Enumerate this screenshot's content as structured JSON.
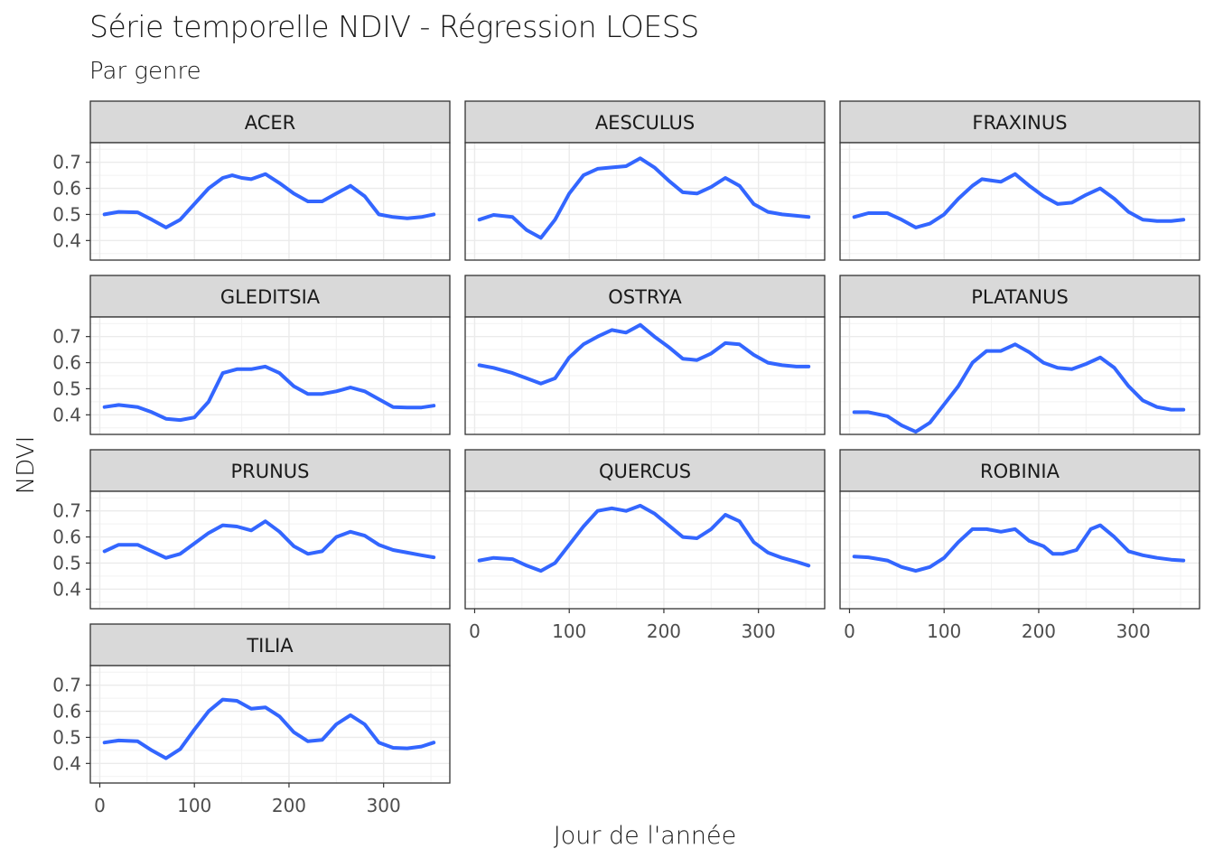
{
  "chart_data": {
    "type": "line",
    "title": "Série temporelle NDIV - Régression LOESS",
    "subtitle": "Par genre",
    "xlabel": "Jour de l'année",
    "ylabel": "NDVI",
    "xlim": [
      -10,
      370
    ],
    "ylim": [
      0.325,
      0.775
    ],
    "x_ticks": [
      0,
      100,
      200,
      300
    ],
    "y_ticks": [
      0.4,
      0.5,
      0.6,
      0.7
    ],
    "grid": true,
    "line_color": "#3366ff",
    "panels": [
      {
        "name": "ACER",
        "x": [
          5,
          20,
          40,
          55,
          70,
          85,
          100,
          115,
          130,
          140,
          150,
          160,
          175,
          190,
          205,
          220,
          235,
          250,
          265,
          280,
          295,
          310,
          325,
          340,
          353
        ],
        "values": [
          0.5,
          0.51,
          0.508,
          0.48,
          0.45,
          0.48,
          0.54,
          0.6,
          0.64,
          0.65,
          0.64,
          0.635,
          0.655,
          0.62,
          0.58,
          0.55,
          0.55,
          0.58,
          0.61,
          0.57,
          0.5,
          0.49,
          0.485,
          0.49,
          0.5
        ]
      },
      {
        "name": "AESCULUS",
        "x": [
          5,
          20,
          40,
          55,
          70,
          85,
          100,
          115,
          130,
          145,
          160,
          175,
          190,
          205,
          220,
          235,
          250,
          265,
          280,
          295,
          310,
          325,
          340,
          353
        ],
        "values": [
          0.48,
          0.498,
          0.49,
          0.44,
          0.41,
          0.48,
          0.58,
          0.65,
          0.675,
          0.68,
          0.685,
          0.715,
          0.68,
          0.63,
          0.585,
          0.58,
          0.605,
          0.64,
          0.61,
          0.54,
          0.51,
          0.5,
          0.495,
          0.49
        ]
      },
      {
        "name": "FRAXINUS",
        "x": [
          5,
          20,
          40,
          55,
          70,
          85,
          100,
          115,
          130,
          140,
          150,
          160,
          175,
          190,
          205,
          220,
          235,
          250,
          265,
          280,
          295,
          310,
          325,
          340,
          353
        ],
        "values": [
          0.49,
          0.505,
          0.505,
          0.48,
          0.45,
          0.465,
          0.5,
          0.56,
          0.61,
          0.635,
          0.63,
          0.625,
          0.655,
          0.61,
          0.57,
          0.54,
          0.545,
          0.575,
          0.6,
          0.56,
          0.51,
          0.48,
          0.475,
          0.475,
          0.48
        ]
      },
      {
        "name": "GLEDITSIA",
        "x": [
          5,
          20,
          40,
          55,
          70,
          85,
          100,
          115,
          130,
          145,
          160,
          175,
          190,
          205,
          220,
          235,
          250,
          265,
          280,
          295,
          310,
          325,
          340,
          353
        ],
        "values": [
          0.43,
          0.438,
          0.43,
          0.41,
          0.385,
          0.38,
          0.39,
          0.45,
          0.56,
          0.575,
          0.575,
          0.585,
          0.56,
          0.51,
          0.48,
          0.48,
          0.49,
          0.505,
          0.49,
          0.46,
          0.43,
          0.428,
          0.428,
          0.435
        ]
      },
      {
        "name": "OSTRYA",
        "x": [
          5,
          20,
          40,
          55,
          70,
          85,
          100,
          115,
          130,
          145,
          160,
          175,
          190,
          205,
          220,
          235,
          250,
          265,
          280,
          295,
          310,
          325,
          340,
          353
        ],
        "values": [
          0.59,
          0.58,
          0.56,
          0.54,
          0.52,
          0.54,
          0.62,
          0.67,
          0.7,
          0.725,
          0.715,
          0.745,
          0.7,
          0.66,
          0.615,
          0.61,
          0.635,
          0.675,
          0.67,
          0.63,
          0.6,
          0.59,
          0.585,
          0.585
        ]
      },
      {
        "name": "PLATANUS",
        "x": [
          5,
          20,
          40,
          55,
          70,
          85,
          100,
          115,
          130,
          145,
          160,
          175,
          190,
          205,
          220,
          235,
          250,
          265,
          280,
          295,
          310,
          325,
          340,
          353
        ],
        "values": [
          0.41,
          0.41,
          0.395,
          0.36,
          0.335,
          0.37,
          0.44,
          0.51,
          0.6,
          0.645,
          0.645,
          0.67,
          0.64,
          0.6,
          0.58,
          0.575,
          0.595,
          0.62,
          0.58,
          0.51,
          0.455,
          0.43,
          0.42,
          0.42
        ]
      },
      {
        "name": "PRUNUS",
        "x": [
          5,
          20,
          40,
          55,
          70,
          85,
          100,
          115,
          130,
          145,
          160,
          175,
          190,
          205,
          220,
          235,
          250,
          265,
          280,
          295,
          310,
          325,
          340,
          353
        ],
        "values": [
          0.545,
          0.57,
          0.57,
          0.545,
          0.52,
          0.535,
          0.575,
          0.615,
          0.645,
          0.64,
          0.625,
          0.66,
          0.62,
          0.565,
          0.535,
          0.545,
          0.6,
          0.62,
          0.605,
          0.57,
          0.55,
          0.54,
          0.53,
          0.522
        ]
      },
      {
        "name": "QUERCUS",
        "x": [
          5,
          20,
          40,
          55,
          70,
          85,
          100,
          115,
          130,
          145,
          160,
          175,
          190,
          205,
          220,
          235,
          250,
          265,
          280,
          295,
          310,
          325,
          340,
          353
        ],
        "values": [
          0.51,
          0.52,
          0.515,
          0.49,
          0.47,
          0.5,
          0.57,
          0.64,
          0.7,
          0.71,
          0.7,
          0.72,
          0.69,
          0.645,
          0.6,
          0.595,
          0.63,
          0.685,
          0.66,
          0.58,
          0.54,
          0.52,
          0.505,
          0.49
        ]
      },
      {
        "name": "ROBINIA",
        "x": [
          5,
          20,
          40,
          55,
          70,
          85,
          100,
          115,
          130,
          145,
          160,
          175,
          190,
          205,
          215,
          225,
          240,
          255,
          265,
          280,
          295,
          310,
          325,
          340,
          353
        ],
        "values": [
          0.525,
          0.522,
          0.51,
          0.485,
          0.47,
          0.485,
          0.52,
          0.58,
          0.63,
          0.63,
          0.62,
          0.63,
          0.585,
          0.565,
          0.535,
          0.535,
          0.55,
          0.63,
          0.645,
          0.6,
          0.545,
          0.53,
          0.52,
          0.513,
          0.51
        ]
      },
      {
        "name": "TILIA",
        "x": [
          5,
          20,
          40,
          55,
          70,
          85,
          100,
          115,
          130,
          145,
          160,
          175,
          190,
          205,
          220,
          235,
          250,
          265,
          280,
          295,
          310,
          325,
          340,
          353
        ],
        "values": [
          0.48,
          0.488,
          0.485,
          0.45,
          0.42,
          0.455,
          0.53,
          0.6,
          0.645,
          0.64,
          0.61,
          0.615,
          0.58,
          0.52,
          0.485,
          0.49,
          0.55,
          0.585,
          0.55,
          0.48,
          0.46,
          0.458,
          0.465,
          0.48
        ]
      }
    ]
  }
}
